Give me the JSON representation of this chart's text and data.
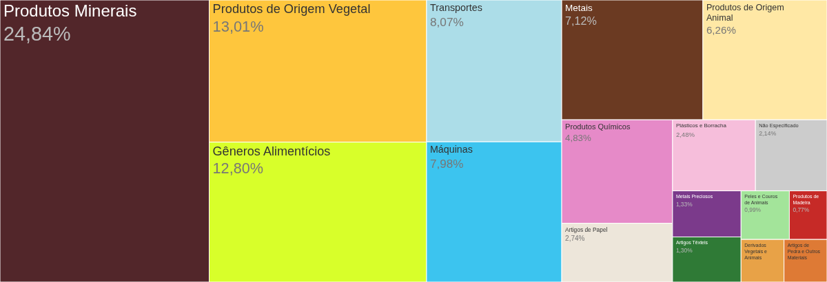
{
  "chart_data": {
    "type": "other",
    "categories": [
      "Produtos Minerais",
      "Produtos de Origem Vegetal",
      "Gêneros Alimentícios",
      "Transportes",
      "Máquinas",
      "Metais",
      "Produtos de Origem Animal",
      "Produtos Químicos",
      "Artigos de Papel",
      "Plásticos e Borracha",
      "Não Especificado",
      "Metais Preciosos",
      "Artigos Têxteis",
      "Peles e Couros de Animais",
      "Produtos de Madeira",
      "Derivados Vegetais e Animais",
      "Artigos de Pedra e Outros Materiais"
    ],
    "values": [
      24.84,
      13.01,
      12.8,
      8.07,
      7.98,
      7.12,
      6.26,
      4.83,
      2.74,
      2.48,
      2.14,
      1.33,
      1.3,
      0.99,
      0.77,
      null,
      null
    ],
    "value_labels": [
      "24,84%",
      "13,01%",
      "12,80%",
      "8,07%",
      "7,98%",
      "7,12%",
      "6,26%",
      "4,83%",
      "2,74%",
      "2,48%",
      "2,14%",
      "1,33%",
      "1,30%",
      "0,99%",
      "0,77%",
      null,
      null
    ],
    "colors": [
      "#52262a",
      "#fec63d",
      "#d8ff2a",
      "#acdde8",
      "#3cc4ef",
      "#6b3a22",
      "#ffe8a5",
      "#e68ac8",
      "#ede6da",
      "#f6bedb",
      "#cccccc",
      "#7b3a8b",
      "#2f7a36",
      "#a3e49a",
      "#c62a27",
      "#e8a247",
      "#de7a35"
    ]
  }
}
